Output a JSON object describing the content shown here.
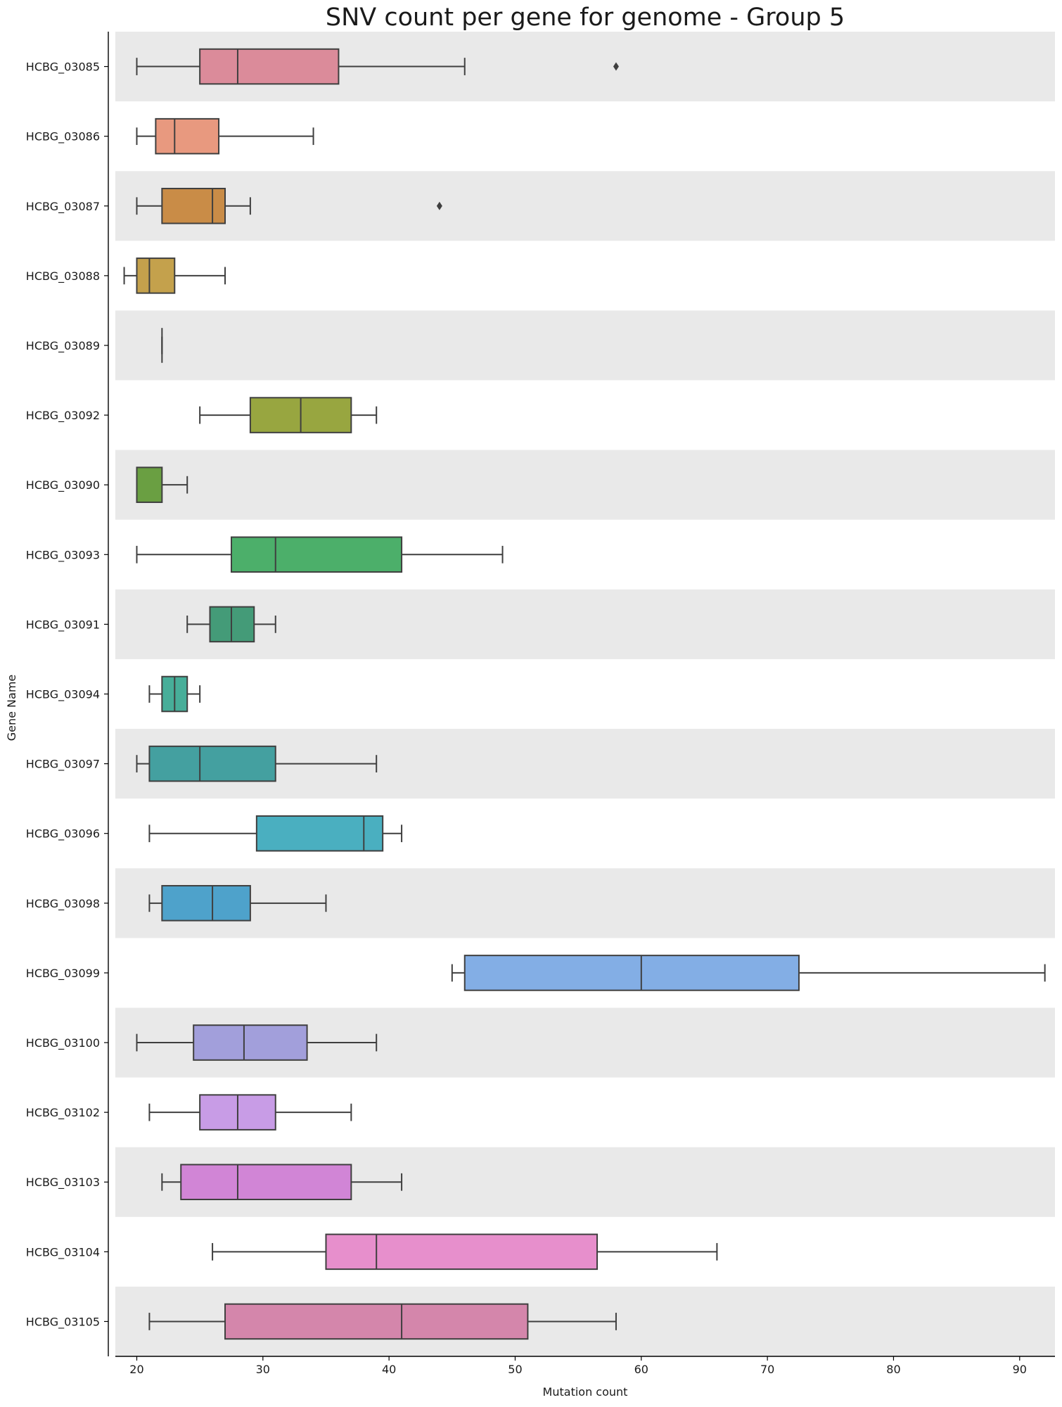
{
  "chart_data": {
    "type": "box",
    "orientation": "horizontal",
    "title": "SNV count per gene for genome - Group 5",
    "xlabel": "Mutation count",
    "ylabel": "Gene Name",
    "xlim": [
      18.3,
      92.8
    ],
    "xticks": [
      20,
      30,
      40,
      50,
      60,
      70,
      80,
      90
    ],
    "grid": false,
    "band_shading": "alternating rows",
    "band_color": "#e9e9e9",
    "line_color": "#3f3f3f",
    "categories": [
      "HCBG_03085",
      "HCBG_03086",
      "HCBG_03087",
      "HCBG_03088",
      "HCBG_03089",
      "HCBG_03092",
      "HCBG_03090",
      "HCBG_03093",
      "HCBG_03091",
      "HCBG_03094",
      "HCBG_03097",
      "HCBG_03096",
      "HCBG_03098",
      "HCBG_03099",
      "HCBG_03100",
      "HCBG_03102",
      "HCBG_03103",
      "HCBG_03104",
      "HCBG_03105"
    ],
    "boxes": [
      {
        "gene": "HCBG_03085",
        "whislo": 20,
        "q1": 25,
        "med": 28,
        "q3": 36,
        "whishi": 46,
        "fliers": [
          58
        ],
        "color": "#db8b9a"
      },
      {
        "gene": "HCBG_03086",
        "whislo": 20,
        "q1": 21.5,
        "med": 23,
        "q3": 26.5,
        "whishi": 34,
        "fliers": [],
        "color": "#e8997f"
      },
      {
        "gene": "HCBG_03087",
        "whislo": 20,
        "q1": 22,
        "med": 26,
        "q3": 27,
        "whishi": 29,
        "fliers": [
          44
        ],
        "color": "#c98c47"
      },
      {
        "gene": "HCBG_03088",
        "whislo": 19,
        "q1": 20,
        "med": 21,
        "q3": 23,
        "whishi": 27,
        "fliers": [],
        "color": "#c4a14c"
      },
      {
        "gene": "HCBG_03089",
        "whislo": 22,
        "q1": 22,
        "med": 22,
        "q3": 22,
        "whishi": 22,
        "fliers": [],
        "color": "#b0a84a"
      },
      {
        "gene": "HCBG_03092",
        "whislo": 25,
        "q1": 29,
        "med": 33,
        "q3": 37,
        "whishi": 39,
        "fliers": [],
        "color": "#98a640"
      },
      {
        "gene": "HCBG_03090",
        "whislo": 20,
        "q1": 20,
        "med": 20,
        "q3": 22,
        "whishi": 24,
        "fliers": [],
        "color": "#6a9f42"
      },
      {
        "gene": "HCBG_03093",
        "whislo": 20,
        "q1": 27.5,
        "med": 31,
        "q3": 41,
        "whishi": 49,
        "fliers": [],
        "color": "#4caf6a"
      },
      {
        "gene": "HCBG_03091",
        "whislo": 24,
        "q1": 25.8,
        "med": 27.5,
        "q3": 29.3,
        "whishi": 31,
        "fliers": [],
        "color": "#449b78"
      },
      {
        "gene": "HCBG_03094",
        "whislo": 21,
        "q1": 22,
        "med": 23,
        "q3": 24,
        "whishi": 25,
        "fliers": [],
        "color": "#47ae99"
      },
      {
        "gene": "HCBG_03097",
        "whislo": 20,
        "q1": 21,
        "med": 25,
        "q3": 31,
        "whishi": 39,
        "fliers": [],
        "color": "#44a0a0"
      },
      {
        "gene": "HCBG_03096",
        "whislo": 21,
        "q1": 29.5,
        "med": 38,
        "q3": 39.5,
        "whishi": 41,
        "fliers": [],
        "color": "#4aafc0"
      },
      {
        "gene": "HCBG_03098",
        "whislo": 21,
        "q1": 22,
        "med": 26,
        "q3": 29,
        "whishi": 35,
        "fliers": [],
        "color": "#4ea2cb"
      },
      {
        "gene": "HCBG_03099",
        "whislo": 45,
        "q1": 46,
        "med": 60,
        "q3": 72.5,
        "whishi": 92,
        "fliers": [],
        "color": "#83aee5"
      },
      {
        "gene": "HCBG_03100",
        "whislo": 20,
        "q1": 24.5,
        "med": 28.5,
        "q3": 33.5,
        "whishi": 39,
        "fliers": [],
        "color": "#a29fdb"
      },
      {
        "gene": "HCBG_03102",
        "whislo": 21,
        "q1": 25,
        "med": 28,
        "q3": 31,
        "whishi": 37,
        "fliers": [],
        "color": "#c89ce6"
      },
      {
        "gene": "HCBG_03103",
        "whislo": 22,
        "q1": 23.5,
        "med": 28,
        "q3": 37,
        "whishi": 41,
        "fliers": [],
        "color": "#d185d6"
      },
      {
        "gene": "HCBG_03104",
        "whislo": 26,
        "q1": 35,
        "med": 39,
        "q3": 56.5,
        "whishi": 66,
        "fliers": [],
        "color": "#e78fcc"
      },
      {
        "gene": "HCBG_03105",
        "whislo": 21,
        "q1": 27,
        "med": 41,
        "q3": 51,
        "whishi": 58,
        "fliers": [],
        "color": "#d486ab"
      }
    ]
  }
}
